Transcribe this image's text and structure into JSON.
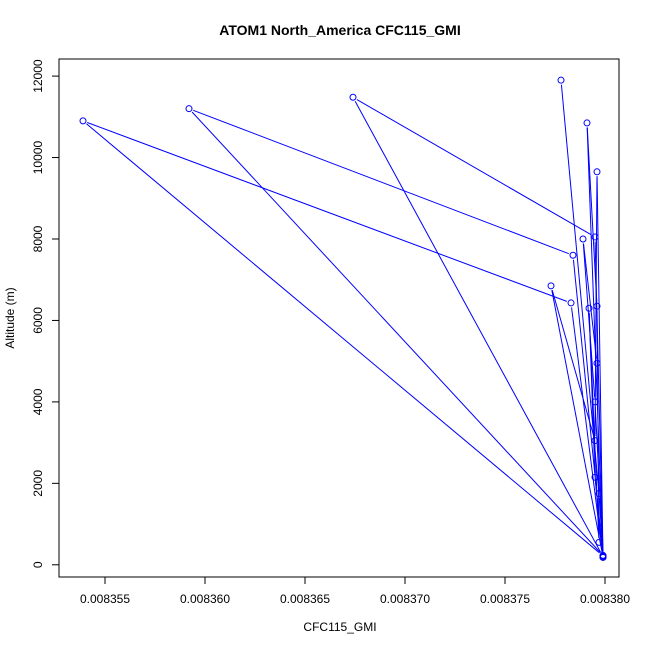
{
  "chart_data": {
    "type": "line",
    "title": "ATOM1 North_America CFC115_GMI",
    "xlabel": "CFC115_GMI",
    "ylabel": "Altitude (m)",
    "xlim": [
      0.0083527,
      0.0083807
    ],
    "ylim": [
      -300,
      12420
    ],
    "x_ticks": [
      0.008355,
      0.00836,
      0.008365,
      0.00837,
      0.008375,
      0.00838
    ],
    "x_tick_labels": [
      "0.008355",
      "0.008360",
      "0.008365",
      "0.008370",
      "0.008375",
      "0.008380"
    ],
    "y_ticks": [
      0,
      2000,
      4000,
      6000,
      8000,
      10000,
      12000
    ],
    "y_tick_labels": [
      "0",
      "2000",
      "4000",
      "6000",
      "8000",
      "10000",
      "12000"
    ],
    "grid": false,
    "series_color": "#0000ff",
    "series": [
      {
        "marker": "open-circle",
        "x": [
          0.0083778,
          0.0083797,
          0.0083799,
          0.0083795,
          0.0083792,
          0.0083797,
          0.0083796,
          0.0083791,
          0.0083799,
          0.0083796,
          0.0083795,
          0.0083773,
          0.0083799,
          0.0083783,
          0.0083539,
          0.0083799,
          0.0083784,
          0.0083592,
          0.0083799,
          0.0083795,
          0.0083674,
          0.0083799,
          0.0083795,
          0.0083789,
          0.0083796
        ],
        "y": [
          11900,
          1750,
          200,
          2150,
          6300,
          550,
          6350,
          10850,
          180,
          9650,
          3050,
          6850,
          190,
          6430,
          10900,
          220,
          7600,
          11200,
          230,
          8050,
          11480,
          200,
          4000,
          8000,
          4950
        ]
      }
    ]
  }
}
